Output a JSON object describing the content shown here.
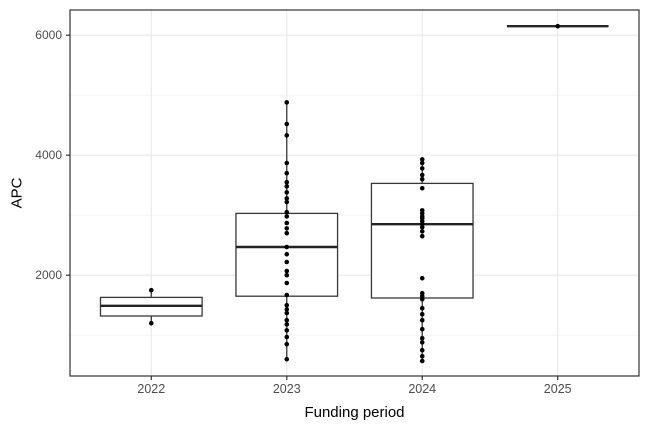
{
  "chart_data": {
    "type": "boxplot",
    "title": "",
    "xlabel": "Funding period",
    "ylabel": "APC",
    "categories": [
      "2022",
      "2023",
      "2024",
      "2025"
    ],
    "y_major_ticks": [
      2000,
      4000,
      6000
    ],
    "y_minor_ticks": [
      1000,
      3000,
      5000
    ],
    "ylim": [
      320,
      6420
    ],
    "grid": "horizontal major+minor, vertical major at categories",
    "legend": "none",
    "points_jitter": "none (points stacked on group center line)",
    "series": [
      {
        "category": "2022",
        "q1": 1320,
        "median": 1490,
        "q3": 1630,
        "whisker_low": 1200,
        "whisker_high": 1750,
        "points": [
          1750,
          1200
        ]
      },
      {
        "category": "2023",
        "q1": 1650,
        "median": 2470,
        "q3": 3030,
        "whisker_low": 600,
        "whisker_high": 4880,
        "points": [
          4880,
          4520,
          4330,
          3870,
          3700,
          3550,
          3480,
          3380,
          3280,
          3220,
          3050,
          2980,
          2870,
          2780,
          2700,
          2470,
          2350,
          2220,
          2070,
          2000,
          1870,
          1670,
          1500,
          1430,
          1370,
          1250,
          1180,
          1080,
          970,
          850,
          600
        ]
      },
      {
        "category": "2024",
        "q1": 1620,
        "median": 2850,
        "q3": 3530,
        "whisker_low": 570,
        "whisker_high": 3930,
        "points": [
          3930,
          3870,
          3780,
          3670,
          3600,
          3450,
          3080,
          3030,
          2980,
          2950,
          2900,
          2850,
          2800,
          2730,
          2650,
          1950,
          1700,
          1650,
          1600,
          1450,
          1350,
          1250,
          1100,
          950,
          880,
          750,
          650,
          570
        ]
      },
      {
        "category": "2025",
        "q1": 6150,
        "median": 6150,
        "q3": 6150,
        "whisker_low": 6150,
        "whisker_high": 6150,
        "points": [
          6150
        ]
      }
    ],
    "colors": {
      "background": "#ffffff",
      "panel_background": "#ffffff",
      "panel_border": "#424242",
      "grid_major": "#e9e9e9",
      "grid_minor": "#f3f3f3",
      "box_stroke": "#383838",
      "box_fill": "#ffffff",
      "median_stroke": "#242424",
      "point": "#000000",
      "tick_mark": "#333333",
      "tick_label": "#4d4d4d",
      "axis_title": "#000000"
    }
  }
}
